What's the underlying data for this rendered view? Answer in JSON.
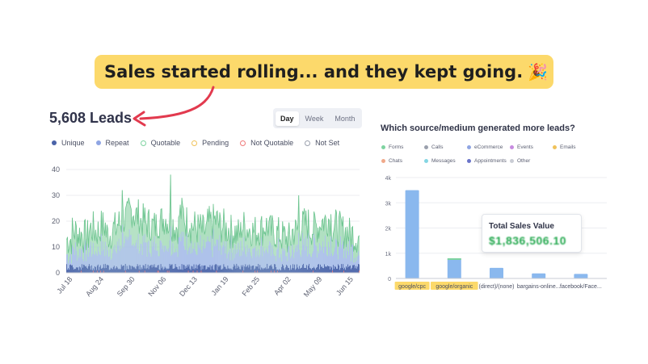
{
  "banner": {
    "text": "Sales started rolling... and they kept going.",
    "emoji": "🎉"
  },
  "leads": {
    "title": "5,608 Leads",
    "period_options": [
      "Day",
      "Week",
      "Month"
    ],
    "selected_period": "Day"
  },
  "colors": {
    "unique": "#4a63a8",
    "repeat": "#8fa5e3",
    "quotable": "#7ed3a0",
    "pending": "#f0c25a",
    "not_quotable": "#ef7a7a",
    "not_set": "#9aa0ad",
    "banner": "#fcd96b",
    "arrow": "#e23a4e",
    "bar": "#8ab8ee",
    "value_green": "#23a84e"
  },
  "chart_data": [
    {
      "type": "bar",
      "stacked": true,
      "legend": [
        "Unique",
        "Repeat",
        "Quotable",
        "Pending",
        "Not Quotable",
        "Not Set"
      ],
      "legend_placement": "top-left",
      "x_ticks": [
        "Jul 18",
        "Aug 24",
        "Sep 30",
        "Nov 06",
        "Dec 13",
        "Jan 19",
        "Feb 25",
        "Apr 02",
        "May 09",
        "Jun 15"
      ],
      "y_ticks": [
        0,
        10,
        20,
        30,
        40
      ],
      "ylim": [
        0,
        40
      ],
      "grid": true,
      "series_totals_weekly": [
        13,
        16,
        15,
        14,
        17,
        16,
        18,
        15,
        17,
        19,
        21,
        24,
        22,
        20,
        19,
        18,
        20,
        21,
        19,
        18,
        23,
        20,
        18,
        17,
        16,
        19,
        20,
        18,
        17,
        16,
        15,
        18,
        17,
        16,
        17,
        18,
        16,
        15,
        14,
        13,
        16,
        18,
        19,
        17,
        18,
        20,
        21,
        18,
        17,
        16,
        15,
        14
      ],
      "peaks": [
        {
          "x": "Sep 30",
          "y": 32
        },
        {
          "x": "Nov 06",
          "y": 38
        },
        {
          "x": "May 09",
          "y": 30
        }
      ]
    },
    {
      "type": "bar",
      "title": "Which source/medium generated more leads?",
      "legend": [
        "Forms",
        "Calls",
        "eCommerce",
        "Events",
        "Emails",
        "Chats",
        "Messages",
        "Appointments",
        "Other"
      ],
      "legend_colors": [
        "#7ed3a0",
        "#9aa0ad",
        "#8fa5e3",
        "#c78be0",
        "#f0c25a",
        "#f0a98a",
        "#84d6e3",
        "#6a74c9",
        "#c9ccd4"
      ],
      "legend_placement": "top",
      "categories": [
        "google/cpc",
        "google/organic",
        "(direct)/(none)",
        "bargains-online...",
        "facebook/Face..."
      ],
      "values": [
        3500,
        800,
        420,
        200,
        180
      ],
      "y_ticks": [
        "0",
        "1k",
        "2k",
        "3k",
        "4k"
      ],
      "ylim": [
        0,
        4000
      ],
      "grid": true,
      "highlighted_categories": [
        "google/cpc",
        "google/organic"
      ],
      "tooltip": {
        "title": "Total Sales Value",
        "value": "$1,836,506.10"
      }
    }
  ]
}
